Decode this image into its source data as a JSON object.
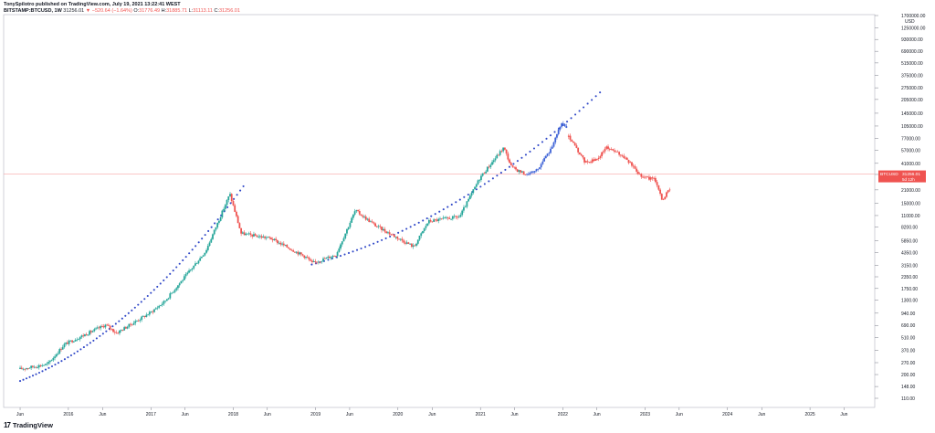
{
  "header": {
    "author": "TonySpilotro published on TradingView.com, July 19, 2021 13:22:41 WEST",
    "symbol": "BITSTAMP:BTCUSD, 1W",
    "last": "31256.01",
    "change": "▼ −520.64 (−1.64%)",
    "o_label": "O:",
    "o_value": "31776.49",
    "h_label": "H:",
    "h_value": "31885.71",
    "l_label": "L:",
    "l_value": "31113.11",
    "c_label": "C:",
    "c_value": "31256.01"
  },
  "brand": {
    "logo": "17",
    "name": "TradingView"
  },
  "colors": {
    "up": "#26a69a",
    "down": "#ef5350",
    "projection_blue": "#3d62d6",
    "projection_red": "#ef5350",
    "curve": "#3048c8",
    "price_line": "#f7a4a4"
  },
  "chart_data": {
    "type": "candlestick",
    "scale": "log",
    "currency": "USD",
    "y_ticks": [
      "1700000.00",
      "1250000.00",
      "930000.00",
      "690000.00",
      "515000.00",
      "375000.00",
      "275000.00",
      "205000.00",
      "145000.00",
      "105000.00",
      "77000.00",
      "57000.00",
      "41000.00",
      "31000.00",
      "21000.00",
      "15000.00",
      "11000.00",
      "8200.00",
      "5850.00",
      "4350.00",
      "3150.00",
      "2350.00",
      "1750.00",
      "1300.00",
      "940.00",
      "690.00",
      "510.00",
      "370.00",
      "270.00",
      "200.00",
      "148.00",
      "110.00"
    ],
    "x_ticks": [
      "Jun",
      "2016",
      "Jun",
      "2017",
      "Jun",
      "2018",
      "Jun",
      "2019",
      "Jun",
      "2020",
      "Jun",
      "2021",
      "Jun",
      "2022",
      "Jun",
      "2023",
      "Jun",
      "2024",
      "Jun",
      "2025",
      "Jun"
    ],
    "last_price_label": {
      "symbol": "BTCUSD",
      "price": "31256.01",
      "countdown": "5d 12h"
    },
    "price_anchors": [
      [
        "2015-06-01",
        230
      ],
      [
        "2015-10-01",
        260
      ],
      [
        "2015-12-15",
        430
      ],
      [
        "2016-06-15",
        700
      ],
      [
        "2016-08-01",
        570
      ],
      [
        "2016-12-31",
        960
      ],
      [
        "2017-03-01",
        1250
      ],
      [
        "2017-06-15",
        2600
      ],
      [
        "2017-09-01",
        4500
      ],
      [
        "2017-12-17",
        19000
      ],
      [
        "2018-02-05",
        7000
      ],
      [
        "2018-06-15",
        6200
      ],
      [
        "2018-11-25",
        3800
      ],
      [
        "2018-12-15",
        3300
      ],
      [
        "2019-04-01",
        4100
      ],
      [
        "2019-06-26",
        12500
      ],
      [
        "2019-09-25",
        8500
      ],
      [
        "2020-03-12",
        5000
      ],
      [
        "2020-05-15",
        9500
      ],
      [
        "2020-10-01",
        10700
      ],
      [
        "2020-12-31",
        29000
      ],
      [
        "2021-04-14",
        61000
      ],
      [
        "2021-05-19",
        37000
      ],
      [
        "2021-07-19",
        31256
      ]
    ],
    "projection_blue": [
      [
        "2021-07-26",
        31500
      ],
      [
        "2021-09-15",
        36000
      ],
      [
        "2021-11-01",
        55000
      ],
      [
        "2021-12-05",
        82000
      ],
      [
        "2021-12-25",
        115000
      ],
      [
        "2022-01-20",
        95000
      ]
    ],
    "projection_red": [
      [
        "2022-01-27",
        80000
      ],
      [
        "2022-03-01",
        60000
      ],
      [
        "2022-04-10",
        42000
      ],
      [
        "2022-06-01",
        45000
      ],
      [
        "2022-07-15",
        62000
      ],
      [
        "2022-10-01",
        48000
      ],
      [
        "2022-12-15",
        30000
      ],
      [
        "2023-02-15",
        27000
      ],
      [
        "2023-03-20",
        16000
      ],
      [
        "2023-04-20",
        22000
      ]
    ],
    "curve_2015_2017": [
      [
        "2015-06-01",
        170
      ],
      [
        "2018-02-15",
        23000
      ]
    ],
    "curve_2018_2022": [
      [
        "2018-12-15",
        3200
      ],
      [
        "2022-06-15",
        245000
      ]
    ]
  }
}
